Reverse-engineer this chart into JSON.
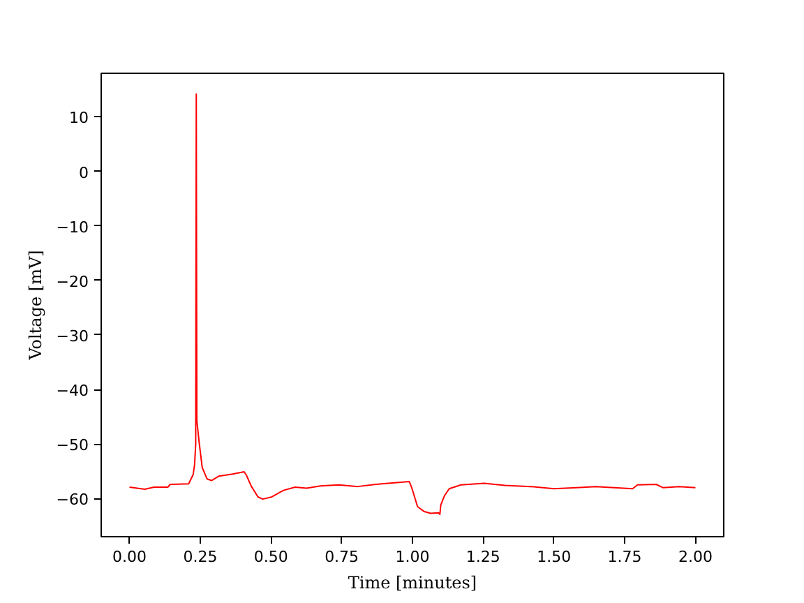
{
  "chart_data": {
    "type": "line",
    "xlabel": "Time [minutes]",
    "ylabel": "Voltage [mV]",
    "x": [
      0,
      0.054,
      0.087,
      0.136,
      0.144,
      0.209,
      0.225,
      0.23,
      0.234,
      0.236,
      0.238,
      0.246,
      0.257,
      0.274,
      0.29,
      0.315,
      0.364,
      0.405,
      0.413,
      0.43,
      0.454,
      0.471,
      0.503,
      0.544,
      0.585,
      0.626,
      0.675,
      0.74,
      0.806,
      0.871,
      0.936,
      0.989,
      0.998,
      1.018,
      1.042,
      1.064,
      1.092,
      1.097,
      1.1,
      1.113,
      1.13,
      1.171,
      1.253,
      1.327,
      1.417,
      1.5,
      1.58,
      1.647,
      1.713,
      1.778,
      1.795,
      1.861,
      1.885,
      1.943,
      2.0
    ],
    "series": [
      {
        "color": "#ff0000",
        "values": [
          -57.9,
          -58.3,
          -57.9,
          -57.9,
          -57.4,
          -57.3,
          -55.6,
          -53.8,
          -50,
          14.2,
          -45.7,
          -49.6,
          -54.3,
          -56.4,
          -56.7,
          -55.9,
          -55.5,
          -55.1,
          -55.7,
          -57.7,
          -59.7,
          -60.1,
          -59.7,
          -58.5,
          -57.9,
          -58.1,
          -57.7,
          -57.5,
          -57.8,
          -57.4,
          -57.1,
          -56.9,
          -58.1,
          -61.5,
          -62.4,
          -62.7,
          -62.6,
          -62.9,
          -61.2,
          -59.5,
          -58.2,
          -57.5,
          -57.2,
          -57.6,
          -57.8,
          -58.2,
          -58.0,
          -57.8,
          -58.0,
          -58.2,
          -57.5,
          -57.4,
          -58.0,
          -57.8,
          -58.0
        ]
      }
    ],
    "xlim": [
      -0.1,
      2.1
    ],
    "ylim": [
      -67,
      18
    ],
    "xticks": [
      {
        "value": 0,
        "label": "0.00"
      },
      {
        "value": 0.25,
        "label": "0.25"
      },
      {
        "value": 0.5,
        "label": "0.50"
      },
      {
        "value": 0.75,
        "label": "0.75"
      },
      {
        "value": 1,
        "label": "1.00"
      },
      {
        "value": 1.25,
        "label": "1.25"
      },
      {
        "value": 1.5,
        "label": "1.50"
      },
      {
        "value": 1.75,
        "label": "1.75"
      },
      {
        "value": 2,
        "label": "2.00"
      }
    ],
    "yticks": [
      {
        "value": -60,
        "label": "−60"
      },
      {
        "value": -50,
        "label": "−50"
      },
      {
        "value": -40,
        "label": "−40"
      },
      {
        "value": -30,
        "label": "−30"
      },
      {
        "value": -20,
        "label": "−20"
      },
      {
        "value": -10,
        "label": "−10"
      },
      0,
      10
    ],
    "grid": false,
    "marker": "none",
    "line_style": "solid"
  }
}
